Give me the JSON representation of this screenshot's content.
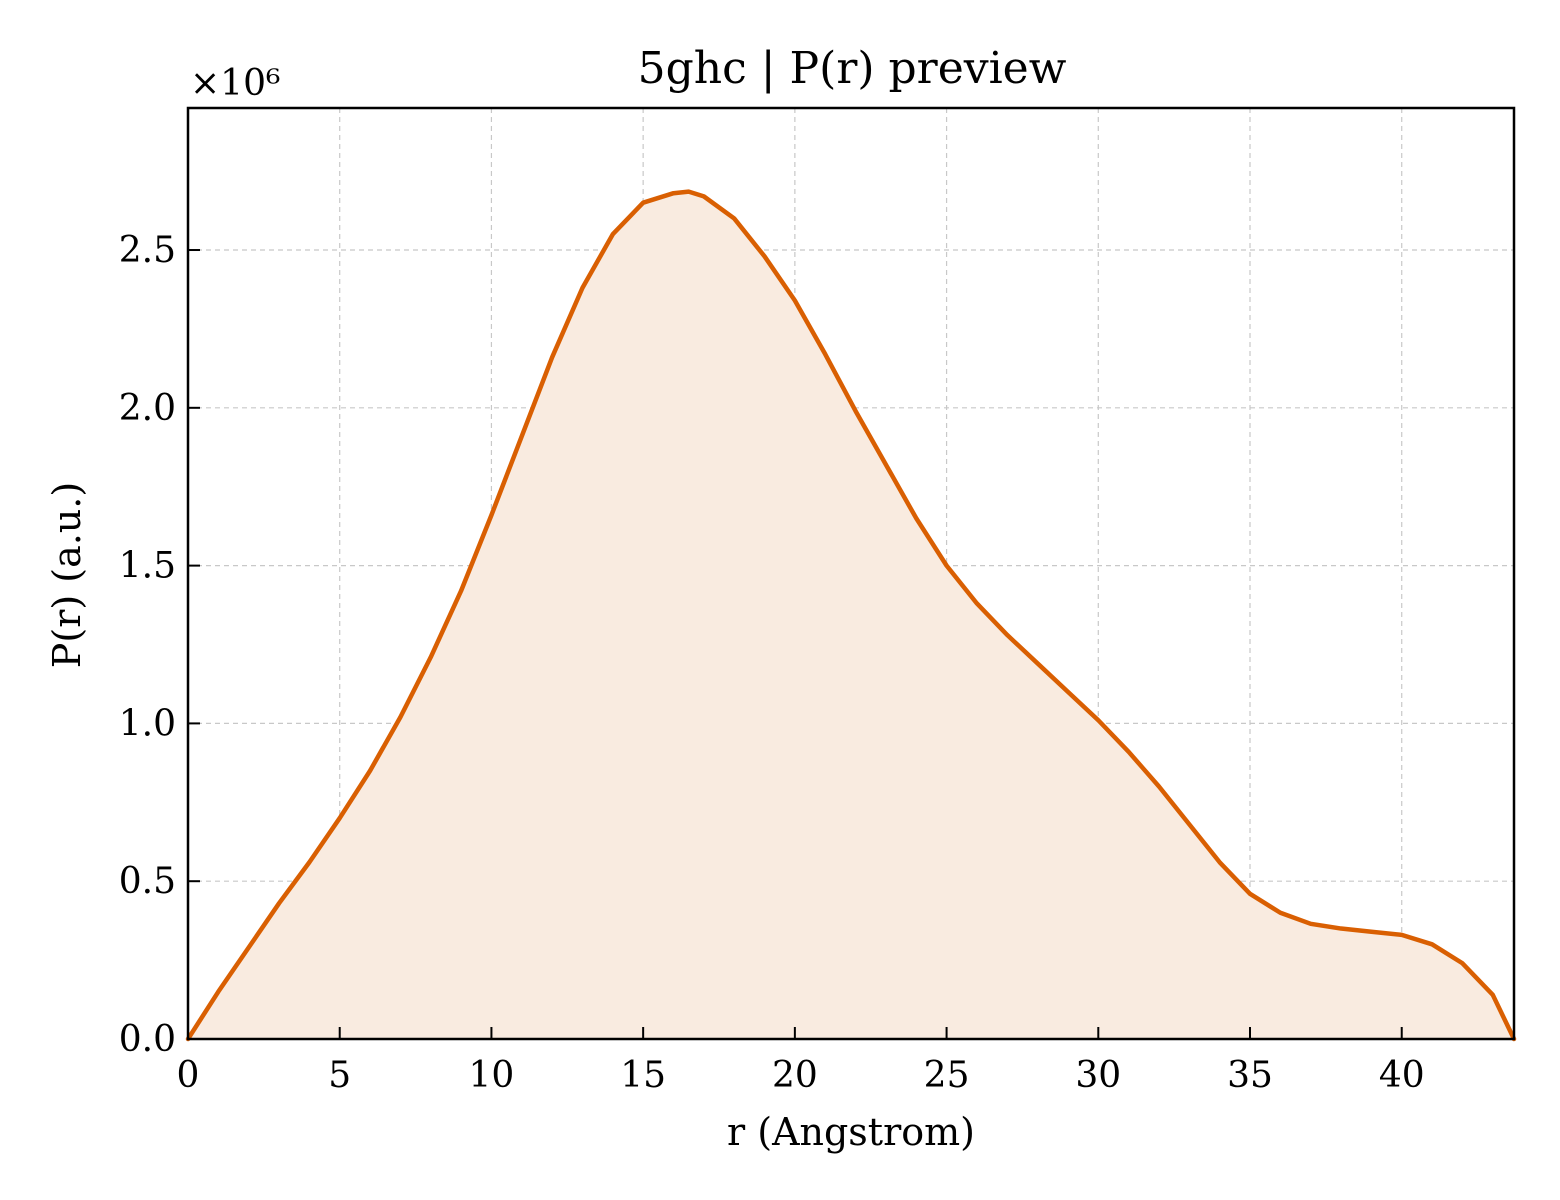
{
  "chart_data": {
    "type": "area",
    "title": "5ghc | P(r) preview",
    "xlabel": "r (Angstrom)",
    "ylabel": "P(r) (a.u.)",
    "y_multiplier": "×10⁶",
    "xlim": [
      0,
      43.7
    ],
    "ylim": [
      0,
      2.95
    ],
    "x_ticks": [
      0,
      5,
      10,
      15,
      20,
      25,
      30,
      35,
      40
    ],
    "x_tick_labels": [
      "0",
      "5",
      "10",
      "15",
      "20",
      "25",
      "30",
      "35",
      "40"
    ],
    "y_ticks": [
      0.0,
      0.5,
      1.0,
      1.5,
      2.0,
      2.5
    ],
    "y_tick_labels": [
      "0.0",
      "0.5",
      "1.0",
      "1.5",
      "2.0",
      "2.5"
    ],
    "grid": true,
    "line_color": "#d95f02",
    "fill_color": "#f9ebe0",
    "series": [
      {
        "x": [
          0,
          1,
          2,
          3,
          4,
          5,
          6,
          7,
          8,
          9,
          10,
          11,
          12,
          13,
          14,
          15,
          16,
          16.5,
          17,
          18,
          19,
          20,
          21,
          22,
          23,
          24,
          25,
          26,
          27,
          28,
          29,
          30,
          31,
          32,
          33,
          34,
          35,
          36,
          37,
          38,
          39,
          40,
          41,
          42,
          43,
          43.7
        ],
        "y": [
          0.0,
          0.15,
          0.29,
          0.43,
          0.56,
          0.7,
          0.85,
          1.02,
          1.21,
          1.42,
          1.66,
          1.91,
          2.16,
          2.38,
          2.55,
          2.65,
          2.68,
          2.685,
          2.67,
          2.6,
          2.48,
          2.34,
          2.17,
          1.99,
          1.82,
          1.65,
          1.5,
          1.38,
          1.28,
          1.19,
          1.1,
          1.01,
          0.91,
          0.8,
          0.68,
          0.56,
          0.46,
          0.4,
          0.365,
          0.35,
          0.34,
          0.33,
          0.3,
          0.24,
          0.14,
          0.0
        ]
      }
    ]
  }
}
